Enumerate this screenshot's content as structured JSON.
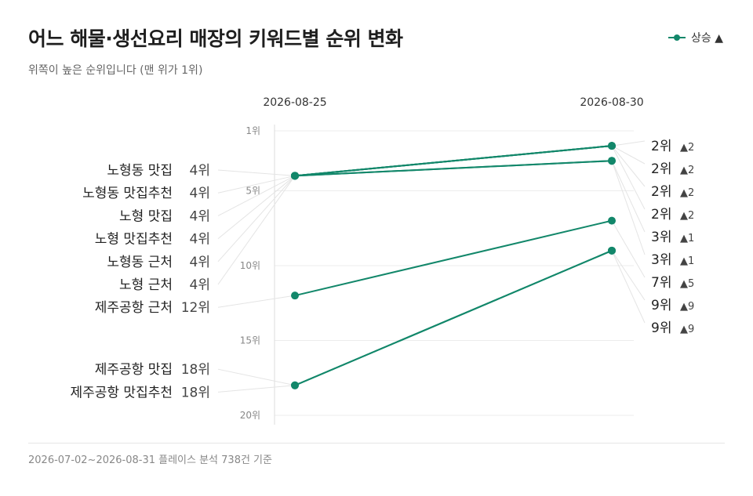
{
  "header": {
    "title": "어느 해물·생선요리 매장의 키워드별 순위 변화",
    "subtitle": "위쪽이 높은 순위입니다 (맨 위가 1위)"
  },
  "legend": {
    "label": "상승 ▲",
    "color": "#12876a"
  },
  "footer": {
    "note": "2026-07-02~2026-08-31 플레이스 분석 738건 기준"
  },
  "chart_data": {
    "type": "line",
    "x": [
      "2026-08-25",
      "2026-08-30"
    ],
    "y_axis": {
      "ticks": [
        1,
        5,
        10,
        15,
        20
      ],
      "tick_suffix": "위",
      "inverted": true,
      "range": [
        1,
        20
      ]
    },
    "rank_suffix": "위",
    "series": [
      {
        "name": "노형동 맛집",
        "values": [
          4,
          2
        ],
        "change": "▲2"
      },
      {
        "name": "노형동 맛집추천",
        "values": [
          4,
          2
        ],
        "change": "▲2"
      },
      {
        "name": "노형 맛집",
        "values": [
          4,
          2
        ],
        "change": "▲2"
      },
      {
        "name": "노형 맛집추천",
        "values": [
          4,
          2
        ],
        "change": "▲2"
      },
      {
        "name": "노형동 근처",
        "values": [
          4,
          3
        ],
        "change": "▲1"
      },
      {
        "name": "노형 근처",
        "values": [
          4,
          3
        ],
        "change": "▲1"
      },
      {
        "name": "제주공항 근처",
        "values": [
          12,
          7
        ],
        "change": "▲5"
      },
      {
        "name": "제주공항 맛집",
        "values": [
          18,
          9
        ],
        "change": "▲9"
      },
      {
        "name": "제주공항 맛집추천",
        "values": [
          18,
          9
        ],
        "change": "▲9"
      }
    ],
    "line_color": "#12876a",
    "grid": true,
    "legend_position": "top-right"
  }
}
